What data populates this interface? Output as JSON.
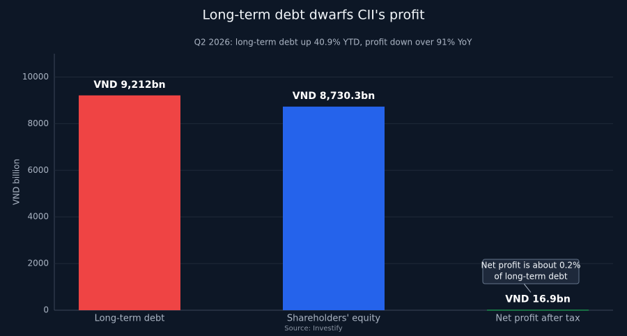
{
  "chart_data": {
    "type": "bar",
    "title": "Long-term debt dwarfs CII's profit",
    "subtitle": "Q2 2026: long-term debt up 40.9% YTD, profit down over 91% YoY",
    "y_label": "VND billion",
    "categories": [
      "Long-term debt",
      "Shareholders' equity",
      "Net profit after tax"
    ],
    "values": [
      9212,
      8730.3,
      16.9
    ],
    "value_labels": [
      "VND 9,212bn",
      "VND 8,730.3bn",
      "VND 16.9bn"
    ],
    "colors": [
      "#ef4444",
      "#2563eb",
      "#22c55e"
    ],
    "ylim": [
      0,
      11000
    ],
    "yticks": [
      0,
      2000,
      4000,
      6000,
      8000,
      10000
    ],
    "grid": true,
    "annotation": [
      "Net profit is about 0.2%",
      "of long-term debt"
    ],
    "source": "Source: Investify"
  }
}
